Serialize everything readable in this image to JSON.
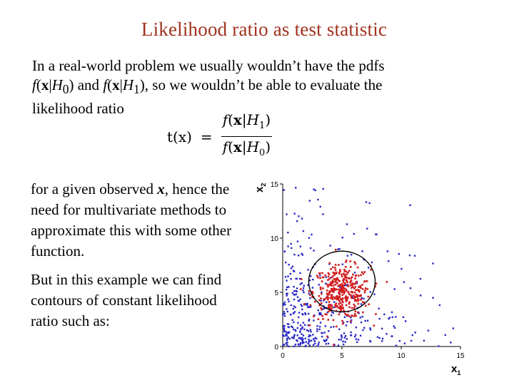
{
  "title": "Likelihood ratio as test statistic",
  "intro": {
    "line1": "In a real-world problem we usually wouldn’t have the pdfs",
    "pdf0_f": "f",
    "pdf0_x": "x",
    "pdf0_H": "H",
    "pdf0_sub": "0",
    "and": " and ",
    "pdf1_f": "f",
    "pdf1_x": "x",
    "pdf1_H": "H",
    "pdf1_sub": "1",
    "line2_rest": ", so we wouldn’t be able to evaluate the",
    "line3": "likelihood ratio"
  },
  "formula": {
    "lhs": "t(x)",
    "eq": "=",
    "num_f": "f",
    "num_x": "x",
    "num_H": "H",
    "num_sub": "1",
    "den_f": "f",
    "den_x": "x",
    "den_H": "H",
    "den_sub": "0"
  },
  "para1": {
    "pre": "for a given observed ",
    "x": "x",
    "post": ", hence the need for multivariate methods to approximate this with some other function."
  },
  "para2": "But in this example we can find contours of constant likelihood ratio such as:",
  "chart_data": {
    "type": "scatter",
    "xlabel": "x",
    "xlabel_sub": "1",
    "ylabel": "x",
    "ylabel_sub": "2",
    "xlim": [
      0,
      15
    ],
    "ylim": [
      0,
      15
    ],
    "xticks": [
      0,
      5,
      10,
      15
    ],
    "yticks": [
      0,
      5,
      10,
      15
    ],
    "contour": {
      "shape": "circle",
      "center": [
        5,
        6
      ],
      "radius": 2.8,
      "color": "#000000"
    },
    "series": [
      {
        "color": "#d21e1e",
        "distribution": "gaussian",
        "mean": [
          5,
          5
        ],
        "sd": 1.2,
        "count": 380
      },
      {
        "color": "#2828c8",
        "distribution": "exponential-like",
        "count": 420
      }
    ]
  }
}
